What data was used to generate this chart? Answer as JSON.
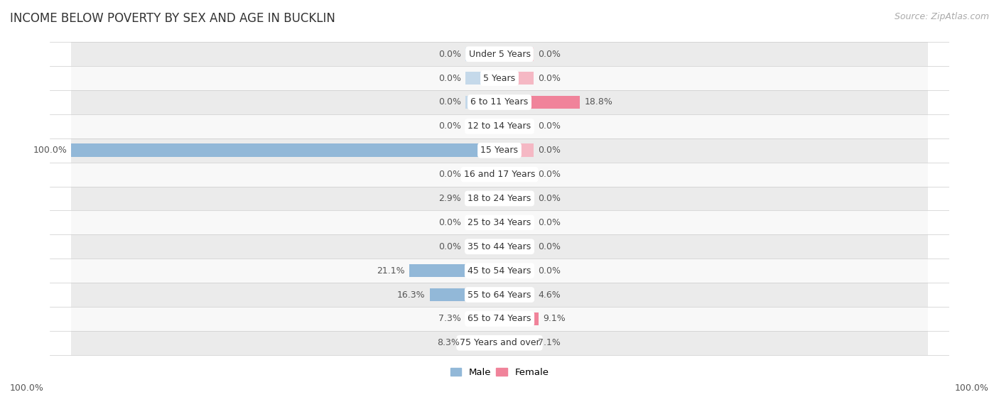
{
  "title": "INCOME BELOW POVERTY BY SEX AND AGE IN BUCKLIN",
  "source": "Source: ZipAtlas.com",
  "categories": [
    "Under 5 Years",
    "5 Years",
    "6 to 11 Years",
    "12 to 14 Years",
    "15 Years",
    "16 and 17 Years",
    "18 to 24 Years",
    "25 to 34 Years",
    "35 to 44 Years",
    "45 to 54 Years",
    "55 to 64 Years",
    "65 to 74 Years",
    "75 Years and over"
  ],
  "male_values": [
    0.0,
    0.0,
    0.0,
    0.0,
    100.0,
    0.0,
    2.9,
    0.0,
    0.0,
    21.1,
    16.3,
    7.3,
    8.3
  ],
  "female_values": [
    0.0,
    0.0,
    18.8,
    0.0,
    0.0,
    0.0,
    0.0,
    0.0,
    0.0,
    0.0,
    4.6,
    9.1,
    7.1
  ],
  "male_color": "#92b8d8",
  "female_color": "#f0839a",
  "male_color_light": "#c5d9ea",
  "female_color_light": "#f5b8c4",
  "male_label": "Male",
  "female_label": "Female",
  "row_bg_odd": "#ebebeb",
  "row_bg_even": "#f8f8f8",
  "max_value": 100.0,
  "title_fontsize": 12,
  "label_fontsize": 9,
  "tick_fontsize": 9,
  "source_fontsize": 9,
  "axis_label_100": "100.0%",
  "min_bar_width": 8.0
}
